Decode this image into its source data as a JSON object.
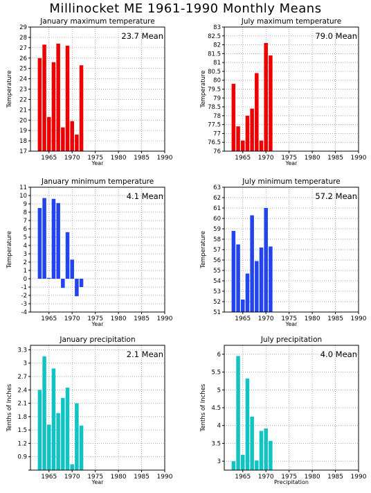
{
  "page": {
    "title": "Millinocket ME   1961-1990 Monthly Means"
  },
  "chart_data": [
    {
      "type": "bar",
      "title": "January maximum temperature",
      "annotation": "23.7 Mean",
      "xlabel": "Year",
      "ylabel": "Temperature",
      "color": "#ee0000",
      "xlim": [
        1961,
        1990
      ],
      "ylim": [
        17,
        29
      ],
      "xticks": [
        1965,
        1970,
        1975,
        1980,
        1985,
        1990
      ],
      "yticks": [
        17,
        18,
        19,
        20,
        21,
        22,
        23,
        24,
        25,
        26,
        27,
        28,
        29
      ],
      "x": [
        1963,
        1964,
        1965,
        1966,
        1967,
        1968,
        1969,
        1970,
        1971,
        1972
      ],
      "values": [
        26.0,
        27.3,
        20.3,
        25.6,
        27.4,
        19.3,
        27.2,
        19.9,
        18.6,
        25.3
      ]
    },
    {
      "type": "bar",
      "title": "July maximum temperature",
      "annotation": "79.0 Mean",
      "xlabel": "Year",
      "ylabel": "Temperature",
      "color": "#ee0000",
      "xlim": [
        1961,
        1990
      ],
      "ylim": [
        76,
        83
      ],
      "xticks": [
        1965,
        1970,
        1975,
        1980,
        1985,
        1990
      ],
      "yticks": [
        76,
        76.5,
        77,
        77.5,
        78,
        78.5,
        79,
        79.5,
        80,
        80.5,
        81,
        81.5,
        82,
        82.5,
        83
      ],
      "x": [
        1963,
        1964,
        1965,
        1966,
        1967,
        1968,
        1969,
        1970,
        1971
      ],
      "values": [
        79.8,
        77.4,
        76.6,
        78.0,
        78.4,
        80.4,
        76.6,
        82.1,
        81.4
      ]
    },
    {
      "type": "bar",
      "title": "January minimum temperature",
      "annotation": "4.1 Mean",
      "xlabel": "Year",
      "ylabel": "Temperature",
      "color": "#2244ee",
      "xlim": [
        1961,
        1990
      ],
      "ylim": [
        -4,
        11
      ],
      "xticks": [
        1965,
        1970,
        1975,
        1980,
        1985,
        1990
      ],
      "yticks": [
        -4,
        -3,
        -2,
        -1,
        0,
        1,
        2,
        3,
        4,
        5,
        6,
        7,
        8,
        9,
        10,
        11
      ],
      "x": [
        1963,
        1964,
        1965,
        1966,
        1967,
        1968,
        1969,
        1970,
        1971,
        1972
      ],
      "values": [
        8.5,
        9.7,
        0.1,
        9.6,
        9.1,
        -1.1,
        5.6,
        2.3,
        -2.1,
        -1.0
      ]
    },
    {
      "type": "bar",
      "title": "July minimum temperature",
      "annotation": "57.2 Mean",
      "xlabel": "Year",
      "ylabel": "Temperature",
      "color": "#2244ee",
      "xlim": [
        1961,
        1990
      ],
      "ylim": [
        51,
        63
      ],
      "xticks": [
        1965,
        1970,
        1975,
        1980,
        1985,
        1990
      ],
      "yticks": [
        51,
        52,
        53,
        54,
        55,
        56,
        57,
        58,
        59,
        60,
        61,
        62,
        63
      ],
      "x": [
        1963,
        1964,
        1965,
        1966,
        1967,
        1968,
        1969,
        1970,
        1971
      ],
      "values": [
        58.8,
        57.5,
        52.2,
        54.7,
        60.3,
        55.9,
        57.2,
        61.0,
        57.3
      ]
    },
    {
      "type": "bar",
      "title": "January precipitation",
      "annotation": "2.1 Mean",
      "xlabel": "Year",
      "ylabel": "Tenths of Inches",
      "color": "#11c4c4",
      "xlim": [
        1961,
        1990
      ],
      "ylim": [
        0.6,
        3.4
      ],
      "xticks": [
        1965,
        1970,
        1975,
        1980,
        1985,
        1990
      ],
      "yticks": [
        0.6,
        0.9,
        1.2,
        1.5,
        1.8,
        2.1,
        2.4,
        2.7,
        3,
        3.3
      ],
      "ytick_labels": [
        "",
        "0.9",
        "1.2",
        "1.5",
        "1.8",
        "2.1",
        "2.4",
        "2.7",
        "3",
        "3.3"
      ],
      "x": [
        1963,
        1964,
        1965,
        1966,
        1967,
        1968,
        1969,
        1970,
        1971,
        1972
      ],
      "values": [
        2.4,
        3.15,
        1.62,
        2.88,
        1.88,
        2.22,
        2.45,
        0.73,
        2.1,
        1.6
      ]
    },
    {
      "type": "bar",
      "title": "July precipitation",
      "annotation": "4.0 Mean",
      "xlabel": "Precipitation",
      "ylabel": "Tenths of Inches",
      "color": "#11c4c4",
      "xlim": [
        1961,
        1990
      ],
      "ylim": [
        2.75,
        6.25
      ],
      "xticks": [
        1965,
        1970,
        1975,
        1980,
        1985,
        1990
      ],
      "yticks": [
        3,
        3.5,
        4,
        4.5,
        5,
        5.5,
        6
      ],
      "x": [
        1963,
        1964,
        1965,
        1966,
        1967,
        1968,
        1969,
        1970,
        1971
      ],
      "values": [
        3.0,
        5.95,
        3.18,
        5.32,
        4.25,
        3.02,
        3.85,
        3.92,
        3.57
      ]
    }
  ]
}
